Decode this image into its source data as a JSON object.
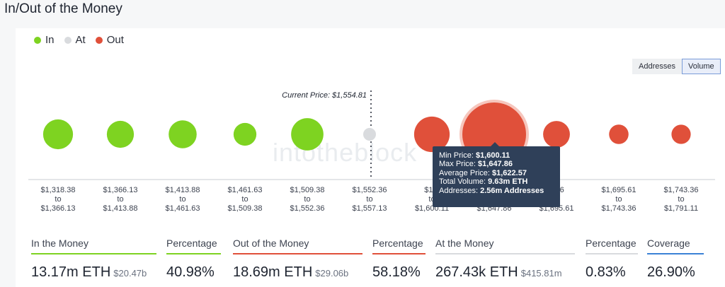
{
  "title": "In/Out of the Money",
  "legend": [
    {
      "label": "In",
      "color": "#7ed321"
    },
    {
      "label": "At",
      "color": "#d9dbde"
    },
    {
      "label": "Out",
      "color": "#e0503a"
    }
  ],
  "toggle": {
    "addresses": "Addresses",
    "volume": "Volume"
  },
  "current_price_label": "Current Price: $1,554.81",
  "watermark": "intotheblock",
  "chart_data": {
    "type": "scatter",
    "title": "",
    "xlabel": "",
    "ylabel": "",
    "x_label_unit": "price range",
    "categories": [
      {
        "from": "$1,318.38",
        "to": "$1,366.13",
        "status": "in",
        "volume_eth_m": 2.12
      },
      {
        "from": "$1,366.13",
        "to": "$1,413.88",
        "status": "in",
        "volume_eth_m": 1.74
      },
      {
        "from": "$1,413.88",
        "to": "$1,461.63",
        "status": "in",
        "volume_eth_m": 1.86
      },
      {
        "from": "$1,461.63",
        "to": "$1,509.38",
        "status": "in",
        "volume_eth_m": 1.24
      },
      {
        "from": "$1,509.38",
        "to": "$1,552.36",
        "status": "in",
        "volume_eth_m": 2.48
      },
      {
        "from": "$1,552.36",
        "to": "$1,557.13",
        "status": "at",
        "volume_eth_m": 0.27
      },
      {
        "from": "$1,5",
        "to": "$1,600.11",
        "status": "out",
        "volume_eth_m": 3.0
      },
      {
        "from": "",
        "to": "$1,647.86",
        "status": "out",
        "volume_eth_m": 9.63
      },
      {
        "from": "7.86",
        "to": "$1,695.61",
        "status": "out",
        "volume_eth_m": 1.7
      },
      {
        "from": "$1,695.61",
        "to": "$1,743.36",
        "status": "out",
        "volume_eth_m": 0.9
      },
      {
        "from": "$1,743.36",
        "to": "$1,791.11",
        "status": "out",
        "volume_eth_m": 0.88
      }
    ],
    "tooltip": {
      "min_price_label": "Min Price:",
      "min_price": "$1,600.11",
      "max_price_label": "Max Price:",
      "max_price": "$1,647.86",
      "avg_price_label": "Average Price:",
      "avg_price": "$1,622.57",
      "volume_label": "Total Volume:",
      "volume": "9.63m ETH",
      "addresses_label": "Addresses:",
      "addresses": "2.56m Addresses"
    }
  },
  "stats": [
    {
      "label": "In the Money",
      "value": "13.17m ETH",
      "sub": "$20.47b",
      "color": "#7ed321"
    },
    {
      "label": "Percentage",
      "value": "40.98%",
      "sub": "",
      "color": "#7ed321"
    },
    {
      "label": "Out of the Money",
      "value": "18.69m ETH",
      "sub": "$29.06b",
      "color": "#e0503a"
    },
    {
      "label": "Percentage",
      "value": "58.18%",
      "sub": "",
      "color": "#e0503a"
    },
    {
      "label": "At the Money",
      "value": "267.43k ETH",
      "sub": "$415.81m",
      "color": "#d9dbde"
    },
    {
      "label": "Percentage",
      "value": "0.83%",
      "sub": "",
      "color": "#d9dbde"
    },
    {
      "label": "Coverage",
      "value": "26.90%",
      "sub": "",
      "color": "#3b82d6"
    }
  ]
}
